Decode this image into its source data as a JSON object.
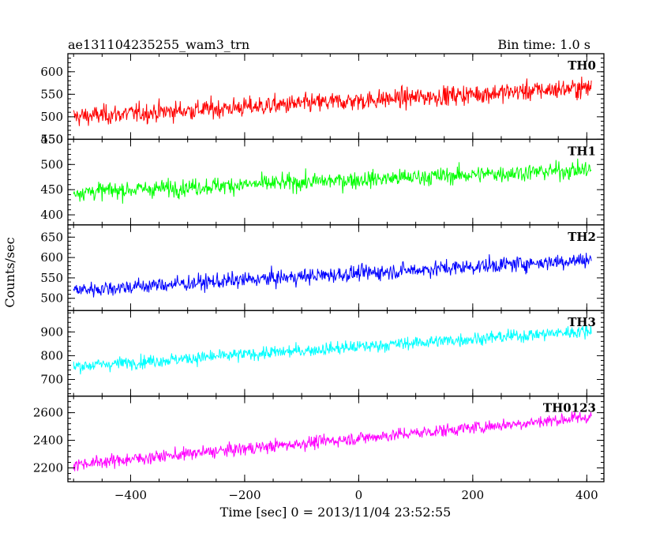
{
  "header": {
    "left_title": "ae131104235255_wam3_trn",
    "right_title": "Bin time: 1.0 s"
  },
  "chart_data": {
    "type": "line",
    "xlabel": "Time [sec] 0 = 2013/11/04 23:52:55",
    "ylabel": "Counts/sec",
    "xlim": [
      -510,
      430
    ],
    "x_range": [
      -500,
      408
    ],
    "x_ticks": [
      -400,
      -200,
      0,
      200,
      400
    ],
    "x_tick_labels": [
      "−400",
      "−200",
      "0",
      "200",
      "400"
    ],
    "grid": false,
    "panels": [
      {
        "label": "TH0",
        "color": "#ff0000",
        "ylim": [
          450,
          640
        ],
        "yticks": [
          450,
          500,
          550,
          600
        ],
        "trend": [
          500,
          565
        ],
        "noise": 28
      },
      {
        "label": "TH1",
        "color": "#00ff00",
        "ylim": [
          380,
          550
        ],
        "yticks": [
          400,
          450,
          500,
          550
        ],
        "trend": [
          445,
          490
        ],
        "noise": 22
      },
      {
        "label": "TH2",
        "color": "#0000ff",
        "ylim": [
          470,
          680
        ],
        "yticks": [
          500,
          550,
          600,
          650
        ],
        "trend": [
          520,
          595
        ],
        "noise": 25
      },
      {
        "label": "TH3",
        "color": "#00ffff",
        "ylim": [
          630,
          990
        ],
        "yticks": [
          700,
          800,
          900
        ],
        "trend": [
          755,
          905
        ],
        "noise": 35
      },
      {
        "label": "TH0123",
        "color": "#ff00ff",
        "ylim": [
          2100,
          2720
        ],
        "yticks": [
          2200,
          2400,
          2600
        ],
        "trend": [
          2225,
          2570
        ],
        "noise": 60
      }
    ]
  }
}
